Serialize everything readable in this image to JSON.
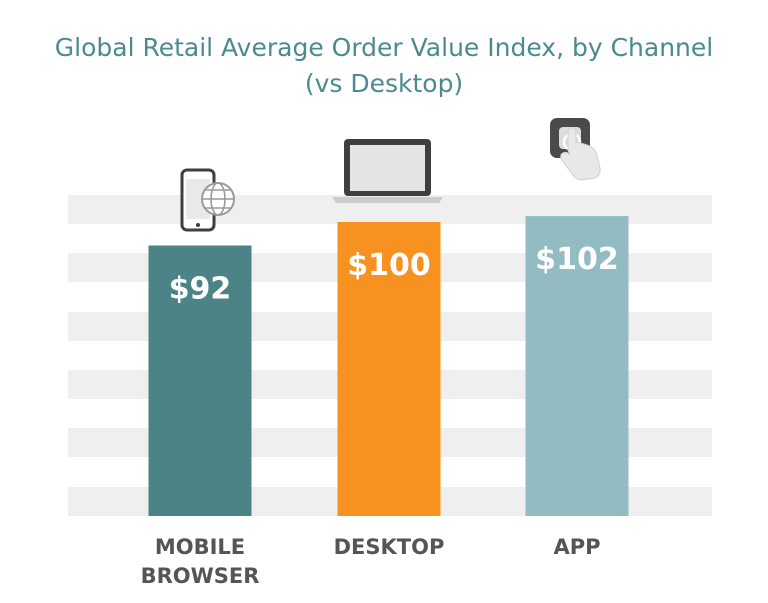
{
  "chart_data": {
    "type": "bar",
    "title_line1": "Global Retail Average Order Value Index, by Channel",
    "title_line2": "(vs Desktop)",
    "categories": [
      [
        "MOBILE",
        "BROWSER"
      ],
      [
        "DESKTOP"
      ],
      [
        "APP"
      ]
    ],
    "values": [
      92,
      100,
      102
    ],
    "value_labels": [
      "$92",
      "$100",
      "$102"
    ],
    "icons": [
      "smartphone-globe-icon",
      "laptop-icon",
      "app-tap-icon"
    ],
    "colors": [
      "#4c8387",
      "#f79120",
      "#92bcc1"
    ],
    "grid": true,
    "grid_color": "#efefef",
    "ylim": [
      0,
      110
    ]
  }
}
